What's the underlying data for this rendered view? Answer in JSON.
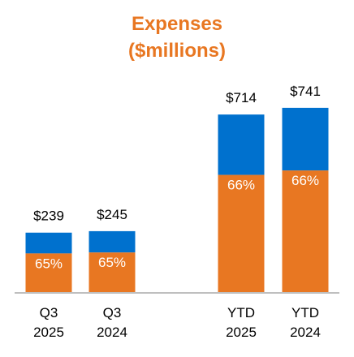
{
  "chart_data": {
    "type": "bar",
    "stacked": true,
    "title": [
      "Expenses",
      "($millions)"
    ],
    "categories": [
      [
        "Q3",
        "2025"
      ],
      [
        "Q3",
        "2024"
      ],
      [
        "YTD",
        "2025"
      ],
      [
        "YTD",
        "2024"
      ]
    ],
    "totals": [
      239,
      245,
      714,
      741
    ],
    "total_labels": [
      "$239",
      "$245",
      "$714",
      "$741"
    ],
    "segment_shares": [
      0.65,
      0.65,
      0.66,
      0.66
    ],
    "segment_labels": [
      "65%",
      "65%",
      "66%",
      "66%"
    ],
    "colors": {
      "bottom_segment": "#E87722",
      "top_segment": "#0071CE",
      "baseline": "#bfbfbf",
      "title": "#E87722"
    },
    "ylim": [
      0,
      800
    ],
    "grid": false,
    "legend": "none"
  }
}
